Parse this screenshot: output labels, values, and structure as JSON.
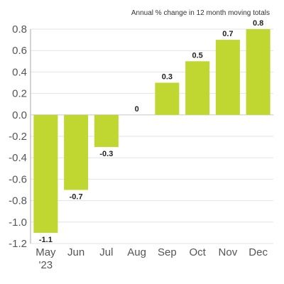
{
  "chart_data": {
    "type": "bar",
    "subtitle": "Annual % change in 12 month moving totals",
    "categories": [
      "May",
      "Jun",
      "Jul",
      "Aug",
      "Sep",
      "Oct",
      "Nov",
      "Dec"
    ],
    "category_sublabels": [
      "'23",
      "",
      "",
      "",
      "",
      "",
      "",
      ""
    ],
    "values": [
      -1.1,
      -0.7,
      -0.3,
      0,
      0.3,
      0.5,
      0.7,
      0.8
    ],
    "data_labels": [
      "-1.1",
      "-0.7",
      "-0.3",
      "0",
      "0.3",
      "0.5",
      "0.7",
      "0.8"
    ],
    "yticks": [
      "0.8",
      "0.6",
      "0.4",
      "0.2",
      "0.0",
      "-0.2",
      "-0.4",
      "-0.6",
      "-0.8",
      "-1.0",
      "-1.2"
    ],
    "ylim": [
      -1.2,
      0.8
    ],
    "grid": true,
    "bar_color": "#bfd730"
  }
}
